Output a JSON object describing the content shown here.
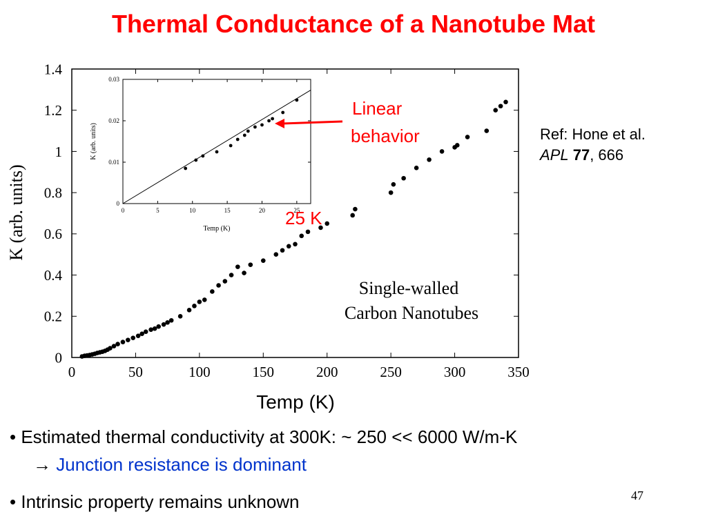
{
  "slide": {
    "title": "Thermal Conductance of a Nanotube Mat",
    "ref_line1": "Ref: Hone et al.",
    "ref_journal": "APL",
    "ref_volume": "77",
    "ref_pages": ", 666",
    "bullet1_prefix": "•",
    "bullet1": "Estimated thermal conductivity at 300K: ~ 250 << 6000 W/m-K",
    "bullet1_arrow": "→",
    "bullet1_sub": "Junction resistance is dominant",
    "bullet2_prefix": "•",
    "bullet2": "Intrinsic property remains unknown",
    "page_number": "47"
  },
  "colors": {
    "title": "#ff0000",
    "annotation": "#ff0000",
    "emphasis": "#0033cc",
    "points": "#000000"
  },
  "chart_data": [
    {
      "type": "scatter",
      "xlabel": "Temp (K)",
      "ylabel": "K (arb. units)",
      "xlim": [
        0,
        350
      ],
      "ylim": [
        0,
        1.4
      ],
      "xticks": [
        0,
        50,
        100,
        150,
        200,
        250,
        300,
        350
      ],
      "xtick_labels": [
        "0",
        "50",
        "100",
        "150",
        "200",
        "250",
        "300",
        "350"
      ],
      "yticks": [
        0,
        0.2,
        0.4,
        0.6,
        0.8,
        1,
        1.2,
        1.4
      ],
      "ytick_labels": [
        "0",
        "0.2",
        "0.4",
        "0.6",
        "0.8",
        "1",
        "1.2",
        "1.4"
      ],
      "grid": false,
      "legend_text": [
        "Single-walled",
        "Carbon  Nanotubes"
      ],
      "annotations": [
        {
          "text_lines": [
            "Linear",
            "behavior"
          ]
        },
        {
          "text": "25 K"
        }
      ],
      "series": [
        {
          "x": [
            8,
            10,
            12,
            14,
            16,
            18,
            20,
            22,
            24,
            26,
            28,
            30,
            33,
            36,
            40,
            44,
            48,
            52,
            55,
            58,
            62,
            65,
            68,
            72,
            75,
            78,
            85,
            92,
            96,
            100,
            104,
            110,
            115,
            120,
            125,
            130,
            135,
            140,
            150,
            160,
            165,
            170,
            175,
            180,
            185,
            195,
            200,
            220,
            222,
            250,
            252,
            260,
            270,
            280,
            290,
            300,
            302,
            310,
            325,
            332,
            336,
            340
          ],
          "y": [
            0.005,
            0.008,
            0.01,
            0.012,
            0.015,
            0.018,
            0.022,
            0.025,
            0.028,
            0.032,
            0.038,
            0.045,
            0.055,
            0.065,
            0.075,
            0.085,
            0.095,
            0.105,
            0.115,
            0.125,
            0.135,
            0.14,
            0.15,
            0.16,
            0.17,
            0.18,
            0.2,
            0.23,
            0.25,
            0.27,
            0.28,
            0.32,
            0.35,
            0.37,
            0.4,
            0.44,
            0.41,
            0.45,
            0.47,
            0.5,
            0.52,
            0.54,
            0.55,
            0.59,
            0.61,
            0.63,
            0.65,
            0.69,
            0.72,
            0.8,
            0.84,
            0.87,
            0.92,
            0.96,
            1.0,
            1.02,
            1.03,
            1.07,
            1.1,
            1.2,
            1.22,
            1.24
          ]
        }
      ]
    },
    {
      "type": "scatter",
      "xlabel": "Temp (K)",
      "ylabel": "K (arb. units)",
      "xlim": [
        0,
        27
      ],
      "ylim": [
        0,
        0.03
      ],
      "xticks": [
        0,
        5,
        10,
        15,
        20,
        25
      ],
      "xtick_labels": [
        "0",
        "5",
        "10",
        "15",
        "20",
        "25"
      ],
      "yticks": [
        0,
        0.01,
        0.02,
        0.03
      ],
      "ytick_labels": [
        "0",
        "0.01",
        "0.02",
        "0.03"
      ],
      "grid": false,
      "series": [
        {
          "x": [
            9,
            10.5,
            11.5,
            13.5,
            15.5,
            16.5,
            17.5,
            18,
            19,
            20,
            21,
            21.5,
            23,
            25
          ],
          "y": [
            0.0085,
            0.0105,
            0.0115,
            0.0125,
            0.014,
            0.0155,
            0.0165,
            0.0175,
            0.0185,
            0.019,
            0.02,
            0.0205,
            0.022,
            0.025
          ]
        },
        {
          "x": [
            0,
            27
          ],
          "y": [
            0,
            0.0274
          ]
        }
      ]
    }
  ]
}
